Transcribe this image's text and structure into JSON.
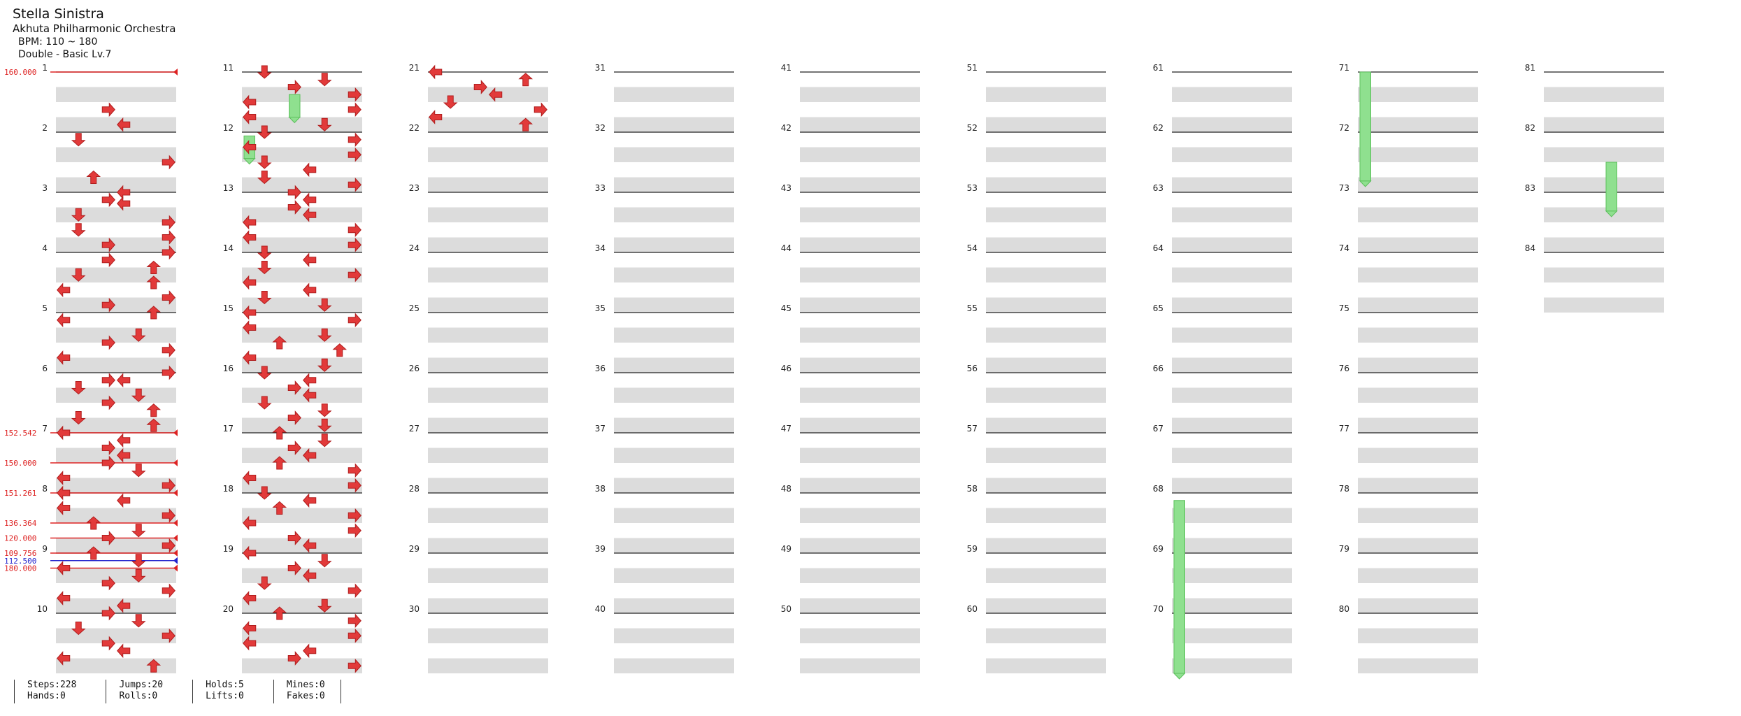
{
  "song": {
    "title": "Stella Sinistra",
    "artist": "Akhuta Philharmonic Orchestra",
    "bpm": "BPM: 110 ~ 180",
    "difficulty": "Double - Basic  Lv.7"
  },
  "stats": {
    "steps": "Steps:228",
    "hands": "Hands:0",
    "jumps": "Jumps:20",
    "rolls": "Rolls:0",
    "holds": "Holds:5",
    "lifts": "Lifts:0",
    "mines": "Mines:0",
    "fakes": "Fakes:0"
  },
  "measure_numbers": [
    1,
    2,
    3,
    4,
    5,
    6,
    7,
    8,
    9,
    10,
    11,
    12,
    13,
    14,
    15,
    16,
    17,
    18,
    19,
    20,
    21,
    22,
    23,
    24,
    25,
    26,
    27,
    28,
    29,
    30,
    31,
    32,
    33,
    34,
    35,
    36,
    37,
    38,
    39,
    40,
    41,
    42,
    43,
    44,
    45,
    46,
    47,
    48,
    49,
    50,
    51,
    52,
    53,
    54,
    55,
    56,
    57,
    58,
    59,
    60,
    61,
    62,
    63,
    64,
    65,
    66,
    67,
    68,
    69,
    70,
    71,
    72,
    73,
    74,
    75,
    76,
    77,
    78,
    79,
    80,
    81,
    82,
    83,
    84
  ],
  "bpm_changes": [
    {
      "label": "160.000",
      "beat": 0,
      "color": "#dd2222"
    },
    {
      "label": "152.542",
      "beat": 24,
      "color": "#dd2222"
    },
    {
      "label": "150.000",
      "beat": 26,
      "color": "#dd2222"
    },
    {
      "label": "151.261",
      "beat": 28,
      "color": "#dd2222"
    },
    {
      "label": "136.364",
      "beat": 30,
      "color": "#dd2222"
    },
    {
      "label": "120.000",
      "beat": 31,
      "color": "#dd2222"
    },
    {
      "label": "109.756",
      "beat": 32,
      "color": "#dd2222"
    },
    {
      "label": "112.500",
      "beat": 32.5,
      "color": "#2222cc"
    },
    {
      "label": "180.000",
      "beat": 33,
      "color": "#dd2222"
    }
  ],
  "colors": {
    "arrow": "#e23a3a",
    "hold": "#8fe08f",
    "stripe": "#dcdcdc"
  },
  "notes": [
    {
      "b": 2.5,
      "d": "R"
    },
    {
      "b": 3.5,
      "d": "L"
    },
    {
      "b": 4.5,
      "d": "D"
    },
    {
      "b": 6,
      "d": "R"
    },
    {
      "b": 7,
      "d": "U"
    },
    {
      "b": 8,
      "d": "L"
    },
    {
      "b": 8.5,
      "d": "R"
    },
    {
      "b": 8.75,
      "d": "L"
    },
    {
      "b": 9.5,
      "d": "D"
    },
    {
      "b": 10,
      "d": "R"
    },
    {
      "b": 10.5,
      "d": "D"
    },
    {
      "b": 11,
      "d": "R"
    },
    {
      "b": 11.5,
      "d": "R"
    },
    {
      "b": 12,
      "d": "R"
    },
    {
      "b": 12.5,
      "d": "R"
    },
    {
      "b": 13,
      "d": "U"
    },
    {
      "b": 13.5,
      "d": "D"
    },
    {
      "b": 14,
      "d": "U"
    },
    {
      "b": 14.5,
      "d": "L"
    },
    {
      "b": 15,
      "d": "R"
    },
    {
      "b": 15.5,
      "d": "R"
    },
    {
      "b": 16,
      "d": "U"
    },
    {
      "b": 16.5,
      "d": "L"
    },
    {
      "b": 17.5,
      "d": "D"
    },
    {
      "b": 18,
      "d": "R"
    },
    {
      "b": 18.5,
      "d": "R"
    },
    {
      "b": 19,
      "d": "L"
    },
    {
      "b": 20,
      "d": "R"
    },
    {
      "b": 20.5,
      "d": "R"
    },
    {
      "b": 20.5,
      "d": "L"
    },
    {
      "b": 21,
      "d": "D"
    },
    {
      "b": 21.5,
      "d": "D"
    },
    {
      "b": 22,
      "d": "R"
    },
    {
      "b": 22.5,
      "d": "U"
    },
    {
      "b": 23,
      "d": "D"
    },
    {
      "b": 23.5,
      "d": "U"
    },
    {
      "b": 24,
      "d": "L"
    },
    {
      "b": 24.5,
      "d": "L"
    },
    {
      "b": 25,
      "d": "R"
    },
    {
      "b": 25.5,
      "d": "L"
    },
    {
      "b": 26,
      "d": "R"
    },
    {
      "b": 26.5,
      "d": "D"
    },
    {
      "b": 27,
      "d": "L"
    },
    {
      "b": 27.5,
      "d": "R"
    },
    {
      "b": 28,
      "d": "L"
    },
    {
      "b": 28.5,
      "d": "L"
    },
    {
      "b": 29,
      "d": "L"
    },
    {
      "b": 29.5,
      "d": "R"
    },
    {
      "b": 30,
      "d": "U"
    },
    {
      "b": 30.5,
      "d": "D"
    },
    {
      "b": 31,
      "d": "R"
    },
    {
      "b": 31.5,
      "d": "R"
    },
    {
      "b": 32,
      "d": "U"
    },
    {
      "b": 32.5,
      "d": "D"
    },
    {
      "b": 33,
      "d": "L"
    },
    {
      "b": 33.5,
      "d": "D"
    },
    {
      "b": 34,
      "d": "R"
    },
    {
      "b": 34.5,
      "d": "R"
    },
    {
      "b": 35,
      "d": "L"
    },
    {
      "b": 35.5,
      "d": "L"
    },
    {
      "b": 36,
      "d": "R"
    },
    {
      "b": 36.5,
      "d": "D"
    },
    {
      "b": 37,
      "d": "D"
    },
    {
      "b": 37.5,
      "d": "R"
    },
    {
      "b": 38,
      "d": "R"
    },
    {
      "b": 38.5,
      "d": "L"
    },
    {
      "b": 39,
      "d": "L"
    },
    {
      "b": 39.5,
      "d": "U"
    },
    {
      "b": 40,
      "d": "D"
    },
    {
      "b": 40.5,
      "d": "D"
    },
    {
      "b": 41,
      "d": "R"
    },
    {
      "b": 41.5,
      "d": "R"
    },
    {
      "b": 42,
      "d": "L"
    },
    {
      "b": 42.5,
      "d": "R"
    },
    {
      "b": 43,
      "d": "L"
    },
    {
      "b": 43.5,
      "d": "D"
    },
    {
      "b": 44,
      "d": "D"
    },
    {
      "b": 44.5,
      "d": "R"
    },
    {
      "b": 45,
      "d": "L"
    },
    {
      "b": 45.5,
      "d": "R"
    },
    {
      "b": 46,
      "d": "D"
    },
    {
      "b": 46.5,
      "d": "L"
    },
    {
      "b": 47,
      "d": "D"
    },
    {
      "b": 47.5,
      "d": "R"
    },
    {
      "b": 48,
      "d": "R"
    },
    {
      "b": 48.5,
      "d": "L"
    },
    {
      "b": 49,
      "d": "R"
    },
    {
      "b": 49.5,
      "d": "L"
    },
    {
      "b": 50,
      "d": "L"
    },
    {
      "b": 50.5,
      "d": "R"
    },
    {
      "b": 51,
      "d": "L"
    },
    {
      "b": 51.5,
      "d": "R"
    },
    {
      "b": 52,
      "d": "D"
    },
    {
      "b": 52.5,
      "d": "L"
    },
    {
      "b": 53,
      "d": "D"
    },
    {
      "b": 53.5,
      "d": "R"
    },
    {
      "b": 54,
      "d": "L"
    },
    {
      "b": 54.5,
      "d": "L"
    },
    {
      "b": 55,
      "d": "D"
    },
    {
      "b": 55.5,
      "d": "D"
    },
    {
      "b": 56,
      "d": "L"
    },
    {
      "b": 56.5,
      "d": "R"
    },
    {
      "b": 57,
      "d": "L"
    },
    {
      "b": 57.5,
      "d": "D"
    },
    {
      "b": 58,
      "d": "U"
    },
    {
      "b": 58.5,
      "d": "U"
    },
    {
      "b": 59,
      "d": "L"
    },
    {
      "b": 59.5,
      "d": "D"
    },
    {
      "b": 60,
      "d": "D"
    },
    {
      "b": 60.5,
      "d": "L"
    },
    {
      "b": 61,
      "d": "R"
    },
    {
      "b": 61.5,
      "d": "L"
    },
    {
      "b": 62,
      "d": "D"
    },
    {
      "b": 62.5,
      "d": "D"
    },
    {
      "b": 63,
      "d": "R"
    },
    {
      "b": 63.5,
      "d": "D"
    },
    {
      "b": 64,
      "d": "U"
    },
    {
      "b": 64.5,
      "d": "D"
    },
    {
      "b": 65,
      "d": "R"
    },
    {
      "b": 65.5,
      "d": "L"
    },
    {
      "b": 66,
      "d": "U"
    },
    {
      "b": 66.5,
      "d": "R"
    },
    {
      "b": 67,
      "d": "L"
    },
    {
      "b": 67.5,
      "d": "R"
    },
    {
      "b": 68,
      "d": "D"
    },
    {
      "b": 68.5,
      "d": "L"
    },
    {
      "b": 69,
      "d": "U"
    },
    {
      "b": 69.5,
      "d": "R"
    },
    {
      "b": 70,
      "d": "L"
    },
    {
      "b": 70.5,
      "d": "R"
    },
    {
      "b": 71,
      "d": "R"
    },
    {
      "b": 71.5,
      "d": "L"
    },
    {
      "b": 72,
      "d": "L"
    },
    {
      "b": 72.5,
      "d": "D"
    },
    {
      "b": 73,
      "d": "R"
    },
    {
      "b": 73.5,
      "d": "L"
    },
    {
      "b": 74,
      "d": "D"
    },
    {
      "b": 74.5,
      "d": "R"
    },
    {
      "b": 75,
      "d": "L"
    },
    {
      "b": 75.5,
      "d": "D"
    },
    {
      "b": 76,
      "d": "U"
    },
    {
      "b": 76.5,
      "d": "R"
    },
    {
      "b": 77,
      "d": "L"
    },
    {
      "b": 77.5,
      "d": "R"
    },
    {
      "b": 78,
      "d": "L"
    },
    {
      "b": 78.5,
      "d": "L"
    },
    {
      "b": 79,
      "d": "R"
    },
    {
      "b": 79.5,
      "d": "R"
    },
    {
      "b": 80,
      "d": "L"
    },
    {
      "b": 80.5,
      "d": "U"
    },
    {
      "b": 81,
      "d": "R"
    },
    {
      "b": 81.5,
      "d": "L"
    },
    {
      "b": 82,
      "d": "D"
    },
    {
      "b": 82.5,
      "d": "R"
    },
    {
      "b": 83,
      "d": "L"
    },
    {
      "b": 83.5,
      "d": "U"
    }
  ],
  "holds": [
    {
      "start": 41.5,
      "end": 43.0,
      "col": 3
    },
    {
      "start": 44.25,
      "end": 45.75,
      "col": 0
    },
    {
      "start": 268.5,
      "end": 281.0,
      "col": 0
    },
    {
      "start": 280.0,
      "end": 287.25,
      "col": 0
    },
    {
      "start": 326.0,
      "end": 329.25,
      "col": 4
    }
  ]
}
